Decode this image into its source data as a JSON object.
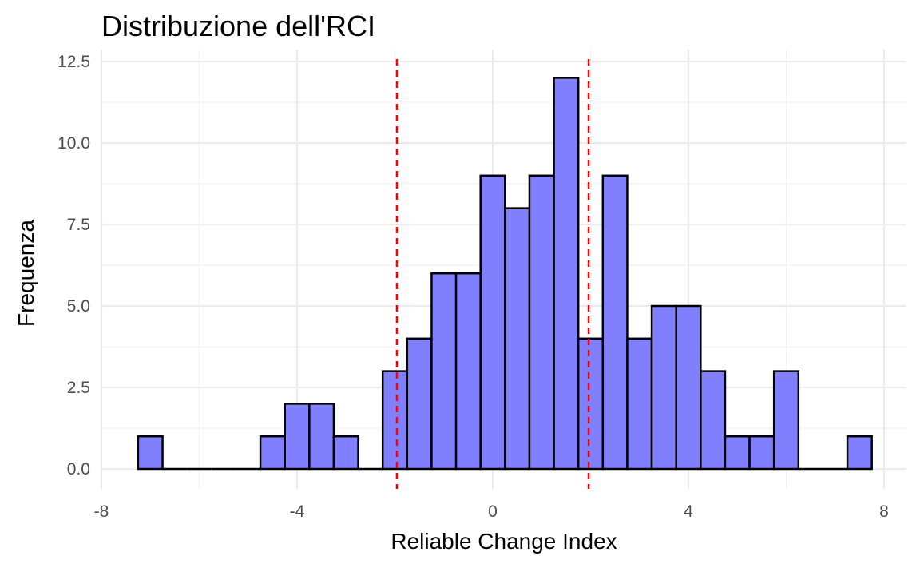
{
  "chart_data": {
    "type": "bar",
    "title": "Distribuzione dell'RCI",
    "xlabel": "Reliable Change Index",
    "ylabel": "Frequenza",
    "xlim": [
      -8,
      8
    ],
    "ylim": [
      0,
      12.5
    ],
    "x_ticks": [
      "-8",
      "-4",
      "0",
      "4",
      "8"
    ],
    "y_ticks": [
      "0.0",
      "2.5",
      "5.0",
      "7.5",
      "10.0",
      "12.5"
    ],
    "x_tick_values": [
      -8,
      -4,
      0,
      4,
      8
    ],
    "y_tick_values": [
      0,
      2.5,
      5,
      7.5,
      10,
      12.5
    ],
    "bin_width": 0.5,
    "bins": [
      {
        "x": -7,
        "count": 1
      },
      {
        "x": -6.5,
        "count": 0
      },
      {
        "x": -6,
        "count": 0
      },
      {
        "x": -5.5,
        "count": 0
      },
      {
        "x": -5,
        "count": 0
      },
      {
        "x": -4.5,
        "count": 1
      },
      {
        "x": -4,
        "count": 2
      },
      {
        "x": -3.5,
        "count": 2
      },
      {
        "x": -3,
        "count": 1
      },
      {
        "x": -2.5,
        "count": 0
      },
      {
        "x": -2,
        "count": 3
      },
      {
        "x": -1.5,
        "count": 4
      },
      {
        "x": -1,
        "count": 6
      },
      {
        "x": -0.5,
        "count": 6
      },
      {
        "x": 0,
        "count": 9
      },
      {
        "x": 0.5,
        "count": 8
      },
      {
        "x": 1,
        "count": 9
      },
      {
        "x": 1.5,
        "count": 12
      },
      {
        "x": 2,
        "count": 4
      },
      {
        "x": 2.5,
        "count": 9
      },
      {
        "x": 3,
        "count": 4
      },
      {
        "x": 3.5,
        "count": 5
      },
      {
        "x": 4,
        "count": 5
      },
      {
        "x": 4.5,
        "count": 3
      },
      {
        "x": 5,
        "count": 1
      },
      {
        "x": 5.5,
        "count": 1
      },
      {
        "x": 6,
        "count": 3
      },
      {
        "x": 6.5,
        "count": 0
      },
      {
        "x": 7,
        "count": 0
      },
      {
        "x": 7.5,
        "count": 1
      }
    ],
    "reference_lines": [
      -1.96,
      1.96
    ],
    "colors": {
      "bar_fill": "#8080ff",
      "bar_stroke": "#000000",
      "reference_line": "#ff0000",
      "grid_major": "#ebebeb",
      "grid_minor": "#f2f2f2"
    },
    "grid": true,
    "legend": "none"
  }
}
